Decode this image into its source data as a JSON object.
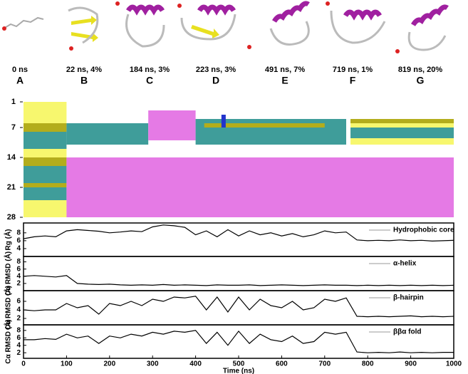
{
  "snapshots": [
    {
      "time": "0 ns",
      "letter": "A"
    },
    {
      "time": "22 ns, 4%",
      "letter": "B"
    },
    {
      "time": "184 ns, 3%",
      "letter": "C"
    },
    {
      "time": "223 ns, 3%",
      "letter": "D"
    },
    {
      "time": "491 ns, 7%",
      "letter": "E"
    },
    {
      "time": "719 ns, 1%",
      "letter": "F"
    },
    {
      "time": "819 ns, 20%",
      "letter": "G"
    }
  ],
  "chart_data": [
    {
      "type": "ss_timeline",
      "xlim": [
        0,
        1000
      ],
      "ylim": [
        1,
        28
      ],
      "yticks": [
        1,
        7,
        14,
        21,
        28
      ],
      "blocks": [
        {
          "t0": 0,
          "t1": 100,
          "r0": 1,
          "r1": 6,
          "color": "#f7f76e"
        },
        {
          "t0": 0,
          "t1": 100,
          "r0": 6,
          "r1": 8,
          "color": "#b3ad1c"
        },
        {
          "t0": 0,
          "t1": 100,
          "r0": 8,
          "r1": 12,
          "color": "#3f9d9a"
        },
        {
          "t0": 0,
          "t1": 100,
          "r0": 12,
          "r1": 14,
          "color": "#f7f76e"
        },
        {
          "t0": 0,
          "t1": 100,
          "r0": 14,
          "r1": 16,
          "color": "#b3ad1c"
        },
        {
          "t0": 0,
          "t1": 100,
          "r0": 16,
          "r1": 20,
          "color": "#3f9d9a"
        },
        {
          "t0": 0,
          "t1": 100,
          "r0": 20,
          "r1": 21,
          "color": "#b3ad1c"
        },
        {
          "t0": 0,
          "t1": 100,
          "r0": 21,
          "r1": 24,
          "color": "#3f9d9a"
        },
        {
          "t0": 0,
          "t1": 100,
          "r0": 24,
          "r1": 28,
          "color": "#f7f76e"
        },
        {
          "t0": 100,
          "t1": 1000,
          "r0": 14,
          "r1": 28,
          "color": "#e57ae5"
        },
        {
          "t0": 100,
          "t1": 290,
          "r0": 6,
          "r1": 11,
          "color": "#3f9d9a"
        },
        {
          "t0": 290,
          "t1": 400,
          "r0": 3,
          "r1": 10,
          "color": "#e57ae5"
        },
        {
          "t0": 400,
          "t1": 750,
          "r0": 5,
          "r1": 11,
          "color": "#3f9d9a"
        },
        {
          "t0": 420,
          "t1": 700,
          "r0": 6,
          "r1": 7,
          "color": "#b3ad1c"
        },
        {
          "t0": 460,
          "t1": 470,
          "r0": 4,
          "r1": 7,
          "color": "#2233cc"
        },
        {
          "t0": 760,
          "t1": 1000,
          "r0": 5,
          "r1": 11,
          "color": "#f7f76e"
        },
        {
          "t0": 760,
          "t1": 1000,
          "r0": 5,
          "r1": 6,
          "color": "#b3ad1c"
        },
        {
          "t0": 760,
          "t1": 1000,
          "r0": 7,
          "r1": 9.5,
          "color": "#3f9d9a"
        }
      ]
    },
    {
      "type": "line",
      "ylabel": "Rg (Å)",
      "xlim": [
        0,
        1000
      ],
      "ylim": [
        2,
        10.5
      ],
      "yticks": [
        4,
        6,
        8
      ],
      "x": [
        0,
        25,
        50,
        75,
        100,
        125,
        150,
        175,
        200,
        225,
        250,
        275,
        300,
        325,
        350,
        375,
        400,
        425,
        450,
        475,
        500,
        525,
        550,
        575,
        600,
        625,
        650,
        675,
        700,
        725,
        750,
        775,
        800,
        825,
        850,
        875,
        900,
        925,
        950,
        975,
        1000
      ],
      "series": [
        {
          "name": "Hydrophobic core",
          "color": "#000000",
          "values": [
            6.5,
            7,
            7.2,
            7,
            8.5,
            8.8,
            8.6,
            8.4,
            8,
            8.2,
            8.5,
            8.3,
            9.5,
            10,
            9.8,
            9.4,
            7.5,
            8.5,
            7,
            8.8,
            7.2,
            8.5,
            7.5,
            8,
            7.2,
            7.8,
            7,
            7.5,
            8.5,
            8,
            8.2,
            6.2,
            6,
            6.1,
            6,
            6.2,
            6,
            6.1,
            5.9,
            6,
            6.1
          ]
        }
      ]
    },
    {
      "type": "line",
      "ylabel": "Cα RMSD (Å)",
      "xlim": [
        0,
        1000
      ],
      "ylim": [
        0,
        9.5
      ],
      "yticks": [
        2,
        4,
        6,
        8
      ],
      "x": [
        0,
        25,
        50,
        75,
        100,
        125,
        150,
        175,
        200,
        225,
        250,
        275,
        300,
        325,
        350,
        375,
        400,
        425,
        450,
        475,
        500,
        525,
        550,
        575,
        600,
        625,
        650,
        675,
        700,
        725,
        750,
        775,
        800,
        825,
        850,
        875,
        900,
        925,
        950,
        975,
        1000
      ],
      "series": [
        {
          "name": "α-helix",
          "color": "#000000",
          "values": [
            4,
            4.2,
            4,
            3.8,
            4.2,
            2,
            1.8,
            1.7,
            1.8,
            1.6,
            1.5,
            1.6,
            1.5,
            1.7,
            1.5,
            1.6,
            1.5,
            1.4,
            1.6,
            1.5,
            1.5,
            1.6,
            1.4,
            1.5,
            1.6,
            1.5,
            1.4,
            1.5,
            1.6,
            1.5,
            1.5,
            1.4,
            1.5,
            1.4,
            1.5,
            1.4,
            1.5,
            1.4,
            1.5,
            1.4,
            1.5
          ]
        }
      ]
    },
    {
      "type": "line",
      "ylabel": "Cα RMSD (Å)",
      "xlim": [
        0,
        1000
      ],
      "ylim": [
        0.5,
        8.5
      ],
      "yticks": [
        2,
        4,
        6
      ],
      "x": [
        0,
        25,
        50,
        75,
        100,
        125,
        150,
        175,
        200,
        225,
        250,
        275,
        300,
        325,
        350,
        375,
        400,
        425,
        450,
        475,
        500,
        525,
        550,
        575,
        600,
        625,
        650,
        675,
        700,
        725,
        750,
        775,
        800,
        825,
        850,
        875,
        900,
        925,
        950,
        975,
        1000
      ],
      "series": [
        {
          "name": "β-hairpin",
          "color": "#000000",
          "values": [
            4,
            3.8,
            4,
            4,
            5.5,
            4.5,
            5,
            3,
            5.5,
            5,
            6,
            5,
            6.5,
            6,
            7,
            6.8,
            7.2,
            4,
            7,
            3.5,
            7,
            4,
            6.5,
            5,
            4.5,
            6,
            4,
            4.5,
            6.5,
            6,
            6.8,
            2.5,
            2.4,
            2.5,
            2.4,
            2.5,
            2.6,
            2.4,
            2.5,
            2.4,
            2.5
          ]
        }
      ]
    },
    {
      "type": "line",
      "ylabel": "Cα RMSD (Å)",
      "xlim": [
        0,
        1000
      ],
      "ylim": [
        0.5,
        9.5
      ],
      "yticks": [
        2,
        4,
        6,
        8
      ],
      "x": [
        0,
        25,
        50,
        75,
        100,
        125,
        150,
        175,
        200,
        225,
        250,
        275,
        300,
        325,
        350,
        375,
        400,
        425,
        450,
        475,
        500,
        525,
        550,
        575,
        600,
        625,
        650,
        675,
        700,
        725,
        750,
        775,
        800,
        825,
        850,
        875,
        900,
        925,
        950,
        975,
        1000
      ],
      "xticks": [
        0,
        100,
        200,
        300,
        400,
        500,
        600,
        700,
        800,
        900,
        1000
      ],
      "xlabel": "Time (ns)",
      "series": [
        {
          "name": "ββα fold",
          "color": "#000000",
          "values": [
            5.5,
            5.5,
            5.8,
            5.6,
            7,
            6,
            6.5,
            4.5,
            6.5,
            6,
            7,
            6.5,
            7.5,
            7,
            7.8,
            7.5,
            8,
            4.5,
            7.5,
            4,
            7.8,
            4.5,
            7,
            5.5,
            5,
            6.5,
            4.5,
            5,
            7.5,
            7,
            7.5,
            2.2,
            2,
            2.1,
            2,
            2.2,
            2,
            2.1,
            2,
            2.1,
            2.1
          ]
        }
      ]
    }
  ]
}
